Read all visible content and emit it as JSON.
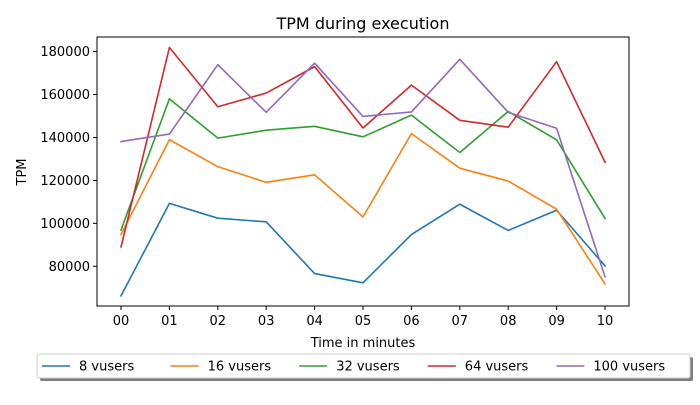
{
  "chart_data": {
    "type": "line",
    "title": "TPM during execution",
    "xlabel": "Time in minutes",
    "ylabel": "TPM",
    "categories": [
      "00",
      "01",
      "02",
      "03",
      "04",
      "05",
      "06",
      "07",
      "08",
      "09",
      "10"
    ],
    "ylim": [
      61500,
      186800
    ],
    "yticks": [
      80000,
      100000,
      120000,
      140000,
      160000,
      180000
    ],
    "grid": false,
    "legend_placement": "bottom",
    "series": [
      {
        "name": "8 vusers",
        "color": "#1f77b4",
        "values": [
          66200,
          109300,
          102400,
          100700,
          76600,
          72300,
          94800,
          108900,
          96700,
          106100,
          80200
        ]
      },
      {
        "name": "16 vusers",
        "color": "#ff7f0e",
        "values": [
          94800,
          139000,
          126400,
          119100,
          122600,
          103000,
          141800,
          125700,
          119700,
          106600,
          71800
        ]
      },
      {
        "name": "32 vusers",
        "color": "#2ca02c",
        "values": [
          96900,
          158000,
          139700,
          143400,
          145200,
          140300,
          150400,
          133000,
          152100,
          138900,
          102300
        ]
      },
      {
        "name": "64 vusers",
        "color": "#d62728",
        "values": [
          89000,
          181900,
          154300,
          160700,
          173000,
          144400,
          164400,
          148000,
          144800,
          175300,
          128500
        ]
      },
      {
        "name": "100 vusers",
        "color": "#9467bd",
        "values": [
          138100,
          141600,
          173900,
          151700,
          174600,
          149800,
          151900,
          176400,
          151700,
          144300,
          75100
        ]
      }
    ]
  }
}
